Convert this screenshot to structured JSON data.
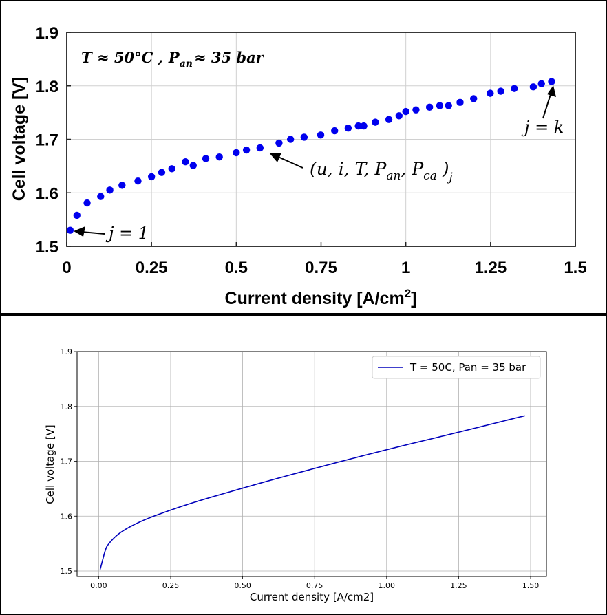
{
  "chart_data": [
    {
      "type": "scatter",
      "title": "",
      "xlabel": "Current density [A/cm",
      "xlabel_sup": "2",
      "xlabel_end": "]",
      "ylabel": "Cell voltage [V]",
      "xlim": [
        0,
        1.5
      ],
      "ylim": [
        1.5,
        1.9
      ],
      "xticks": [
        "0",
        "0.25",
        "0.5",
        "0.75",
        "1",
        "1.25",
        "1.5"
      ],
      "yticks": [
        "1.5",
        "1.6",
        "1.7",
        "1.8",
        "1.9"
      ],
      "grid": true,
      "marker_color": "#0000ee",
      "x": [
        0.01,
        0.06,
        0.127,
        0.25,
        0.373,
        0.5,
        0.626,
        0.749,
        0.876,
        1.0,
        1.126,
        1.249,
        1.376,
        1.43,
        0.03,
        0.1,
        0.163,
        0.21,
        0.28,
        0.31,
        0.35,
        0.41,
        0.45,
        0.53,
        0.57,
        0.66,
        0.7,
        0.79,
        0.83,
        0.86,
        0.91,
        0.95,
        0.98,
        1.03,
        1.07,
        1.1,
        1.16,
        1.2,
        1.28,
        1.32,
        1.4
      ],
      "y": [
        1.53,
        1.581,
        1.605,
        1.63,
        1.651,
        1.675,
        1.693,
        1.708,
        1.725,
        1.752,
        1.763,
        1.786,
        1.798,
        1.808,
        1.558,
        1.593,
        1.614,
        1.622,
        1.638,
        1.645,
        1.658,
        1.664,
        1.667,
        1.68,
        1.684,
        1.7,
        1.704,
        1.716,
        1.721,
        1.725,
        1.732,
        1.737,
        1.744,
        1.755,
        1.76,
        1.763,
        1.769,
        1.776,
        1.79,
        1.795,
        1.804
      ],
      "annotations": {
        "condition_T": "T ≈ 50°C ,",
        "condition_P": "P",
        "condition_P_sub": "an",
        "condition_P_rest": "≈ 35 bar",
        "first_point": "j = 1",
        "last_point": "j = k",
        "tuple_open": "(u, i, T, P",
        "tuple_sub_an": "an",
        "tuple_mid": ", P",
        "tuple_sub_ca": "ca",
        "tuple_close": " )",
        "tuple_sub_j": "j"
      }
    },
    {
      "type": "line",
      "title": "",
      "xlabel": "Current density [A/cm2]",
      "ylabel": "Cell voltage [V]",
      "xlim": [
        -0.075,
        1.555
      ],
      "ylim": [
        1.49,
        1.9
      ],
      "xticks": [
        "0.00",
        "0.25",
        "0.50",
        "0.75",
        "1.00",
        "1.25",
        "1.50"
      ],
      "yticks": [
        "1.5",
        "1.6",
        "1.7",
        "1.8",
        "1.9"
      ],
      "grid": true,
      "legend_position": "top-right",
      "series": [
        {
          "name": "T = 50C, Pan = 35 bar",
          "color": "#0000bb",
          "x_range": [
            0.005,
            1.48
          ],
          "reference_points": [
            [
              0.005,
              1.503
            ],
            [
              0.03,
              1.546
            ],
            [
              0.1,
              1.578
            ],
            [
              0.25,
              1.611
            ],
            [
              0.5,
              1.651
            ],
            [
              0.75,
              1.687
            ],
            [
              1.0,
              1.721
            ],
            [
              1.25,
              1.753
            ],
            [
              1.48,
              1.783
            ]
          ]
        }
      ]
    }
  ]
}
